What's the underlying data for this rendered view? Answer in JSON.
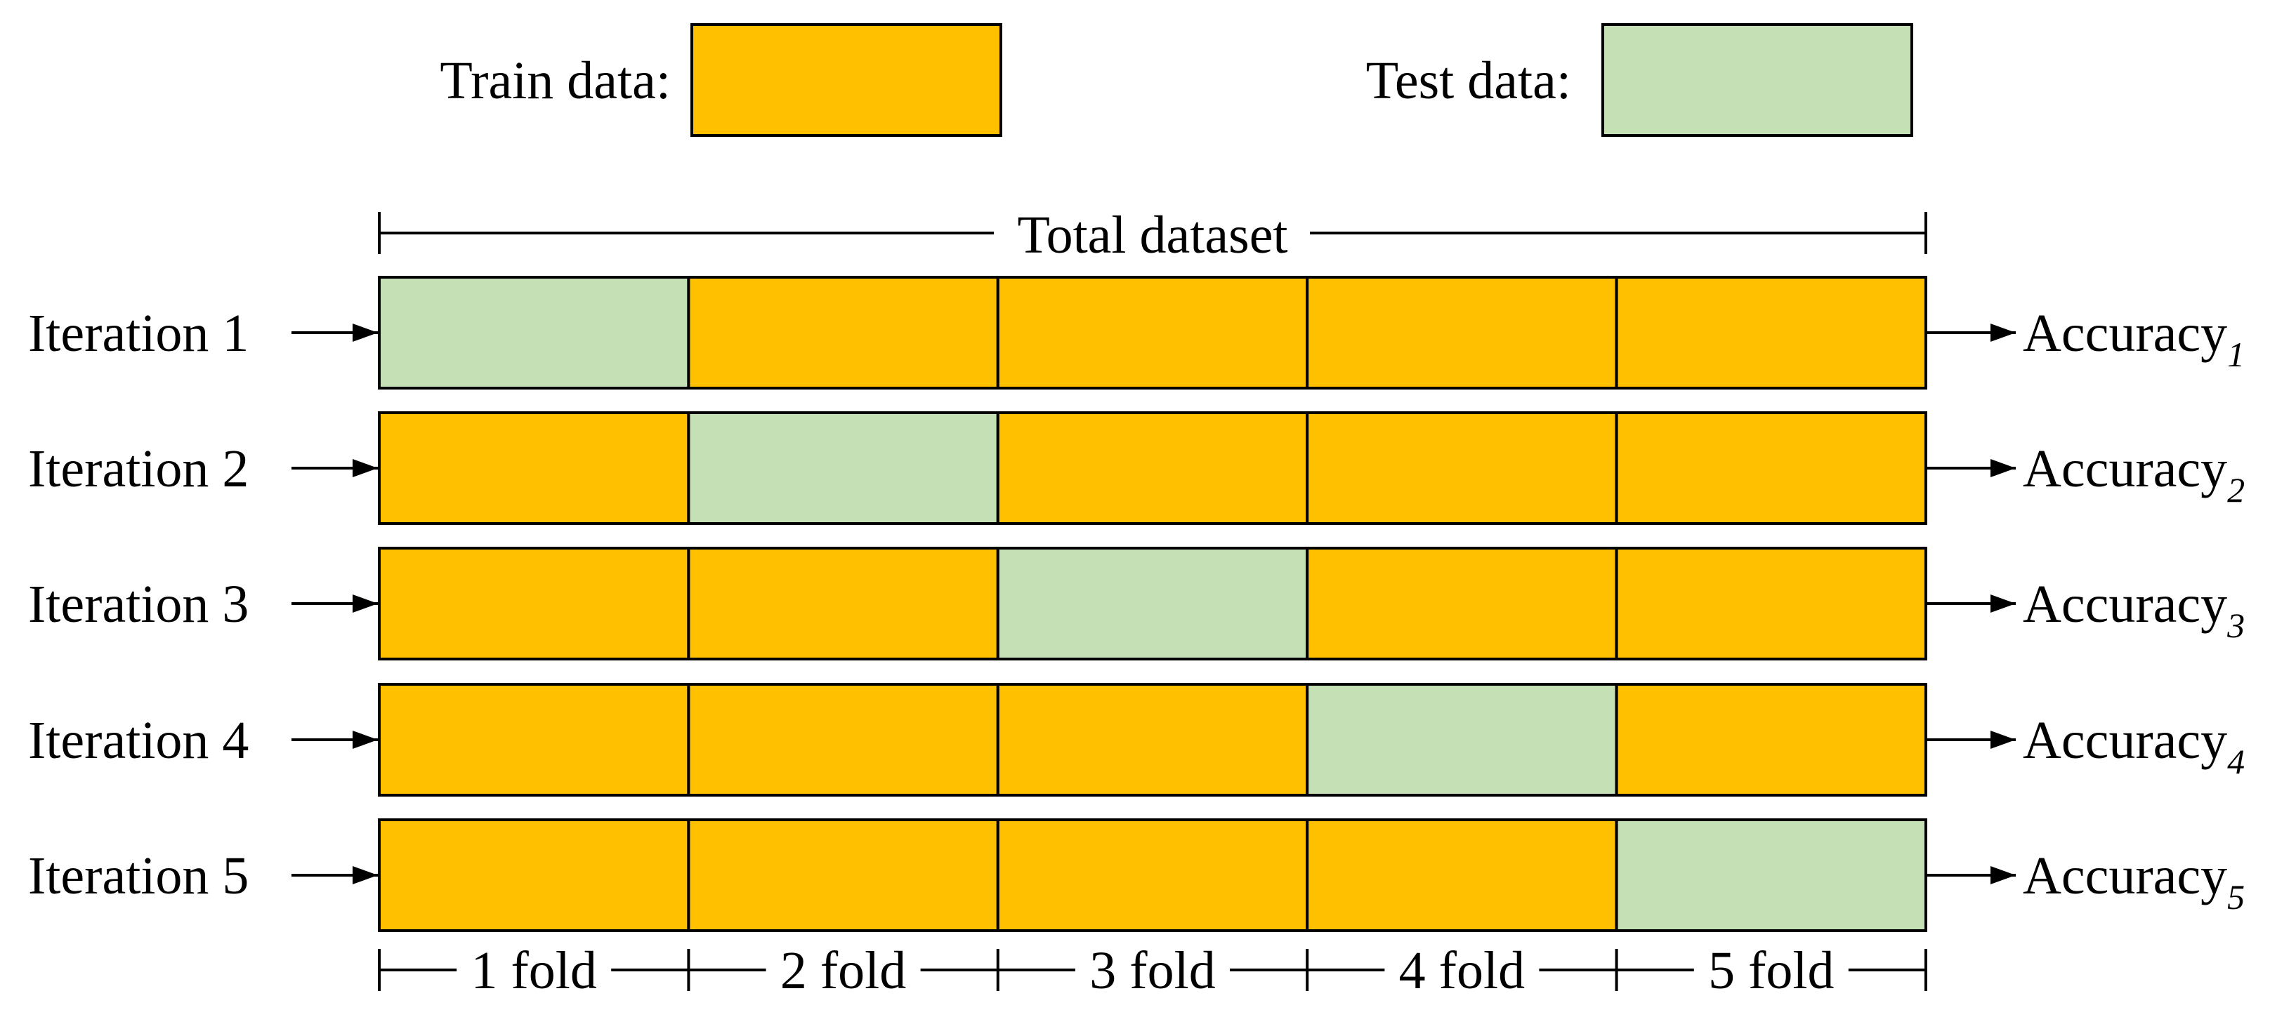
{
  "colors": {
    "train": "#FFC000",
    "test": "#C5E0B4",
    "stroke": "#000000",
    "background": "#FFFFFF"
  },
  "legend": {
    "train_label": "Train data:",
    "test_label": "Test data:"
  },
  "dataset_label": "Total dataset",
  "accuracy_word": "Accuracy",
  "iterations": [
    {
      "label": "Iteration 1",
      "test_fold": 1,
      "accuracy_subscript": "1"
    },
    {
      "label": "Iteration 2",
      "test_fold": 2,
      "accuracy_subscript": "2"
    },
    {
      "label": "Iteration 3",
      "test_fold": 3,
      "accuracy_subscript": "3"
    },
    {
      "label": "Iteration 4",
      "test_fold": 4,
      "accuracy_subscript": "4"
    },
    {
      "label": "Iteration 5",
      "test_fold": 5,
      "accuracy_subscript": "5"
    }
  ],
  "folds": [
    "1 fold",
    "2 fold",
    "3 fold",
    "4 fold",
    "5 fold"
  ]
}
